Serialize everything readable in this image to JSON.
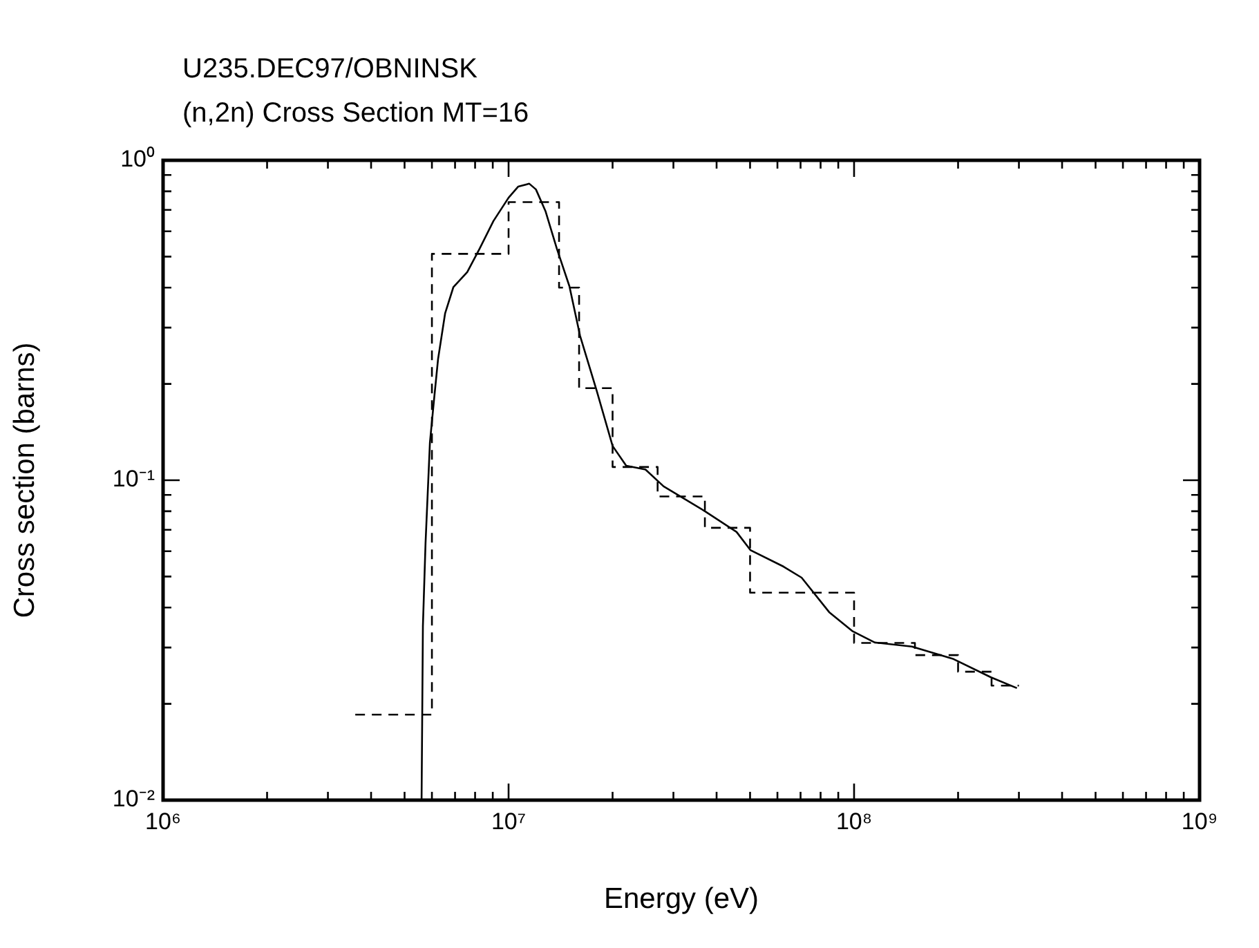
{
  "chart_data": {
    "type": "line",
    "title": "U235.DEC97/OBNINSK",
    "subtitle": "(n,2n) Cross Section MT=16",
    "xlabel": "Energy (eV)",
    "ylabel": "Cross section (barns)",
    "log": "xy",
    "grid": false,
    "legend": false,
    "marker": "none",
    "xlim": [
      1000000,
      1000000000
    ],
    "ylim": [
      0.01,
      1
    ],
    "xticks": [
      {
        "value": 1000000,
        "label": "10⁶"
      },
      {
        "value": 2000000,
        "label": null
      },
      {
        "value": 3000000,
        "label": null
      },
      {
        "value": 4000000,
        "label": null
      },
      {
        "value": 5000000,
        "label": null
      },
      {
        "value": 6000000,
        "label": null
      },
      {
        "value": 7000000,
        "label": null
      },
      {
        "value": 8000000,
        "label": null
      },
      {
        "value": 9000000,
        "label": null
      },
      {
        "value": 10000000,
        "label": "10⁷"
      },
      {
        "value": 20000000,
        "label": null
      },
      {
        "value": 30000000,
        "label": null
      },
      {
        "value": 40000000,
        "label": null
      },
      {
        "value": 50000000,
        "label": null
      },
      {
        "value": 60000000,
        "label": null
      },
      {
        "value": 70000000,
        "label": null
      },
      {
        "value": 80000000,
        "label": null
      },
      {
        "value": 90000000,
        "label": null
      },
      {
        "value": 100000000,
        "label": "10⁸"
      },
      {
        "value": 200000000,
        "label": null
      },
      {
        "value": 300000000,
        "label": null
      },
      {
        "value": 400000000,
        "label": null
      },
      {
        "value": 500000000,
        "label": null
      },
      {
        "value": 600000000,
        "label": null
      },
      {
        "value": 700000000,
        "label": null
      },
      {
        "value": 800000000,
        "label": null
      },
      {
        "value": 900000000,
        "label": null
      },
      {
        "value": 1000000000,
        "label": "10⁹"
      }
    ],
    "yticks": [
      {
        "value": 0.01,
        "label": "10⁻²"
      },
      {
        "value": 0.02,
        "label": null
      },
      {
        "value": 0.03,
        "label": null
      },
      {
        "value": 0.04,
        "label": null
      },
      {
        "value": 0.05,
        "label": null
      },
      {
        "value": 0.06,
        "label": null
      },
      {
        "value": 0.07,
        "label": null
      },
      {
        "value": 0.08,
        "label": null
      },
      {
        "value": 0.09,
        "label": null
      },
      {
        "value": 0.1,
        "label": "10⁻¹"
      },
      {
        "value": 0.2,
        "label": null
      },
      {
        "value": 0.3,
        "label": null
      },
      {
        "value": 0.4,
        "label": null
      },
      {
        "value": 0.5,
        "label": null
      },
      {
        "value": 0.6,
        "label": null
      },
      {
        "value": 0.7,
        "label": null
      },
      {
        "value": 0.8,
        "label": null
      },
      {
        "value": 0.9,
        "label": null
      },
      {
        "value": 1,
        "label": "10⁰"
      }
    ],
    "series": [
      {
        "type": "step",
        "color": "#000000",
        "line_style": "dashed",
        "x": [
          3600000,
          6000000,
          10000000,
          14000000,
          16000000,
          20000000,
          27000000,
          37000000,
          50000000,
          100000000,
          150000000,
          200000000,
          250000000,
          300000000
        ],
        "values": [
          0.0185,
          0.51,
          0.74,
          0.4,
          0.194,
          0.11,
          0.089,
          0.071,
          0.0445,
          0.031,
          0.0284,
          0.0252,
          0.0228,
          0.0228
        ]
      },
      {
        "type": "line",
        "color": "#000000",
        "line_style": "solid",
        "x": [
          5600000,
          5650000,
          5750000,
          5920000,
          6080000,
          6250000,
          6550000,
          6920000,
          7590000,
          8240000,
          9040000,
          10000000,
          10670000,
          11480000,
          12000000,
          12800000,
          13800000,
          15000000,
          16100000,
          18000000,
          20000000,
          21900000,
          24900000,
          28100000,
          37000000,
          45700000,
          50100000,
          62500000,
          70500000,
          84700000,
          99100000,
          114800000,
          147000000,
          194000000,
          249000000,
          296000000
        ],
        "values": [
          0.01,
          0.035,
          0.0636,
          0.131,
          0.177,
          0.239,
          0.332,
          0.401,
          0.447,
          0.529,
          0.646,
          0.764,
          0.828,
          0.845,
          0.811,
          0.692,
          0.529,
          0.404,
          0.283,
          0.19,
          0.128,
          0.111,
          0.108,
          0.0957,
          0.08,
          0.0689,
          0.0605,
          0.0537,
          0.0496,
          0.0387,
          0.0337,
          0.0311,
          0.0302,
          0.0276,
          0.0242,
          0.0224
        ]
      }
    ]
  }
}
